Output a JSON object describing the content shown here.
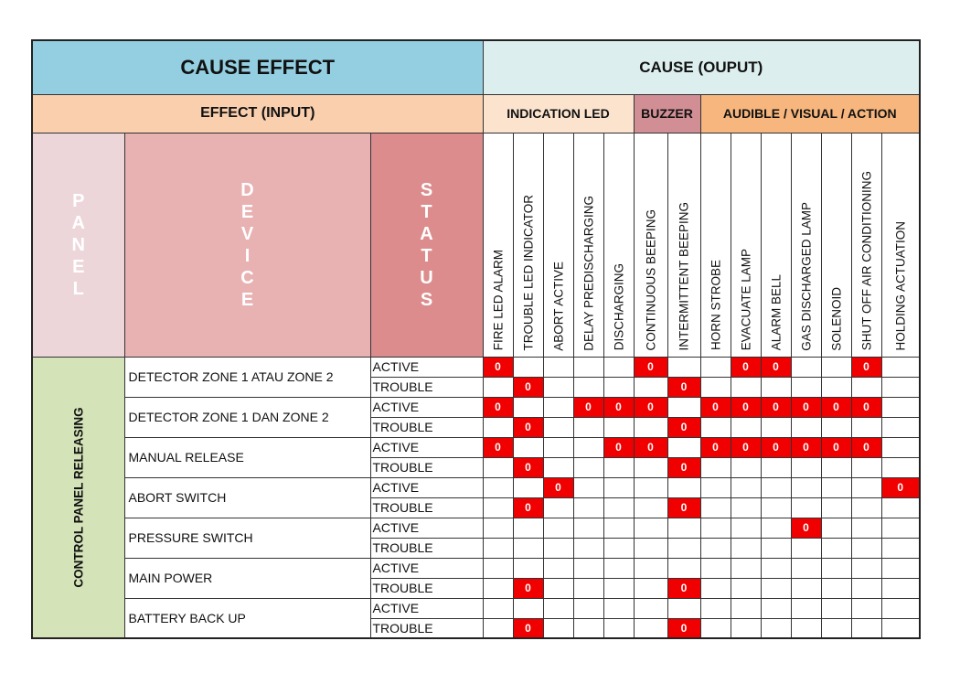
{
  "titles": {
    "effect": "CAUSE EFFECT",
    "cause": "CAUSE (OUPUT)",
    "effect_input": "EFFECT (INPUT)"
  },
  "groups": [
    {
      "label": "INDICATION LED",
      "span": 5
    },
    {
      "label": "BUZZER",
      "span": 2
    },
    {
      "label": "AUDIBLE / VISUAL  / ACTION",
      "span": 7
    }
  ],
  "header_letters": {
    "panel": [
      "P",
      "A",
      "N",
      "E",
      "L"
    ],
    "device": [
      "D",
      "E",
      "V",
      "I",
      "C",
      "E"
    ],
    "status": [
      "S",
      "T",
      "A",
      "T",
      "U",
      "S"
    ]
  },
  "columns": [
    "FIRE LED ALARM",
    "TROUBLE LED INDICATOR",
    "ABORT ACTIVE",
    "DELAY PREDISCHARGING",
    "DISCHARGING",
    "CONTINUOUS BEEPING",
    "INTERMITTENT  BEEPING",
    "HORN STROBE",
    "EVACUATE LAMP",
    "ALARM BELL",
    "GAS DISCHARGED LAMP",
    "SOLENOID",
    "SHUT OFF  AIR CONDITIONING",
    "HOLDING ACTUATION"
  ],
  "panel": "CONTROL PANEL RELEASING",
  "mark_value": "0",
  "devices": [
    {
      "name": "DETECTOR ZONE 1 ATAU ZONE 2",
      "rows": [
        {
          "status": "ACTIVE",
          "marks": [
            0,
            5,
            8,
            9,
            12
          ]
        },
        {
          "status": "TROUBLE",
          "marks": [
            1,
            6
          ]
        }
      ]
    },
    {
      "name": "DETECTOR ZONE 1 DAN ZONE 2",
      "rows": [
        {
          "status": "ACTIVE",
          "marks": [
            0,
            3,
            4,
            5,
            7,
            8,
            9,
            10,
            11,
            12
          ]
        },
        {
          "status": "TROUBLE",
          "marks": [
            1,
            6
          ]
        }
      ]
    },
    {
      "name": "MANUAL RELEASE",
      "rows": [
        {
          "status": "ACTIVE",
          "marks": [
            0,
            4,
            5,
            7,
            8,
            9,
            10,
            11,
            12
          ]
        },
        {
          "status": "TROUBLE",
          "marks": [
            1,
            6
          ]
        }
      ]
    },
    {
      "name": "ABORT SWITCH",
      "rows": [
        {
          "status": "ACTIVE",
          "marks": [
            2,
            13
          ]
        },
        {
          "status": "TROUBLE",
          "marks": [
            1,
            6
          ]
        }
      ]
    },
    {
      "name": "PRESSURE SWITCH",
      "rows": [
        {
          "status": "ACTIVE",
          "marks": [
            10
          ]
        },
        {
          "status": "TROUBLE",
          "marks": []
        }
      ]
    },
    {
      "name": "MAIN POWER",
      "rows": [
        {
          "status": "ACTIVE",
          "marks": []
        },
        {
          "status": "TROUBLE",
          "marks": [
            1,
            6
          ]
        }
      ]
    },
    {
      "name": "BATTERY BACK UP",
      "rows": [
        {
          "status": "ACTIVE",
          "marks": []
        },
        {
          "status": "TROUBLE",
          "marks": [
            1,
            6
          ]
        }
      ]
    }
  ]
}
